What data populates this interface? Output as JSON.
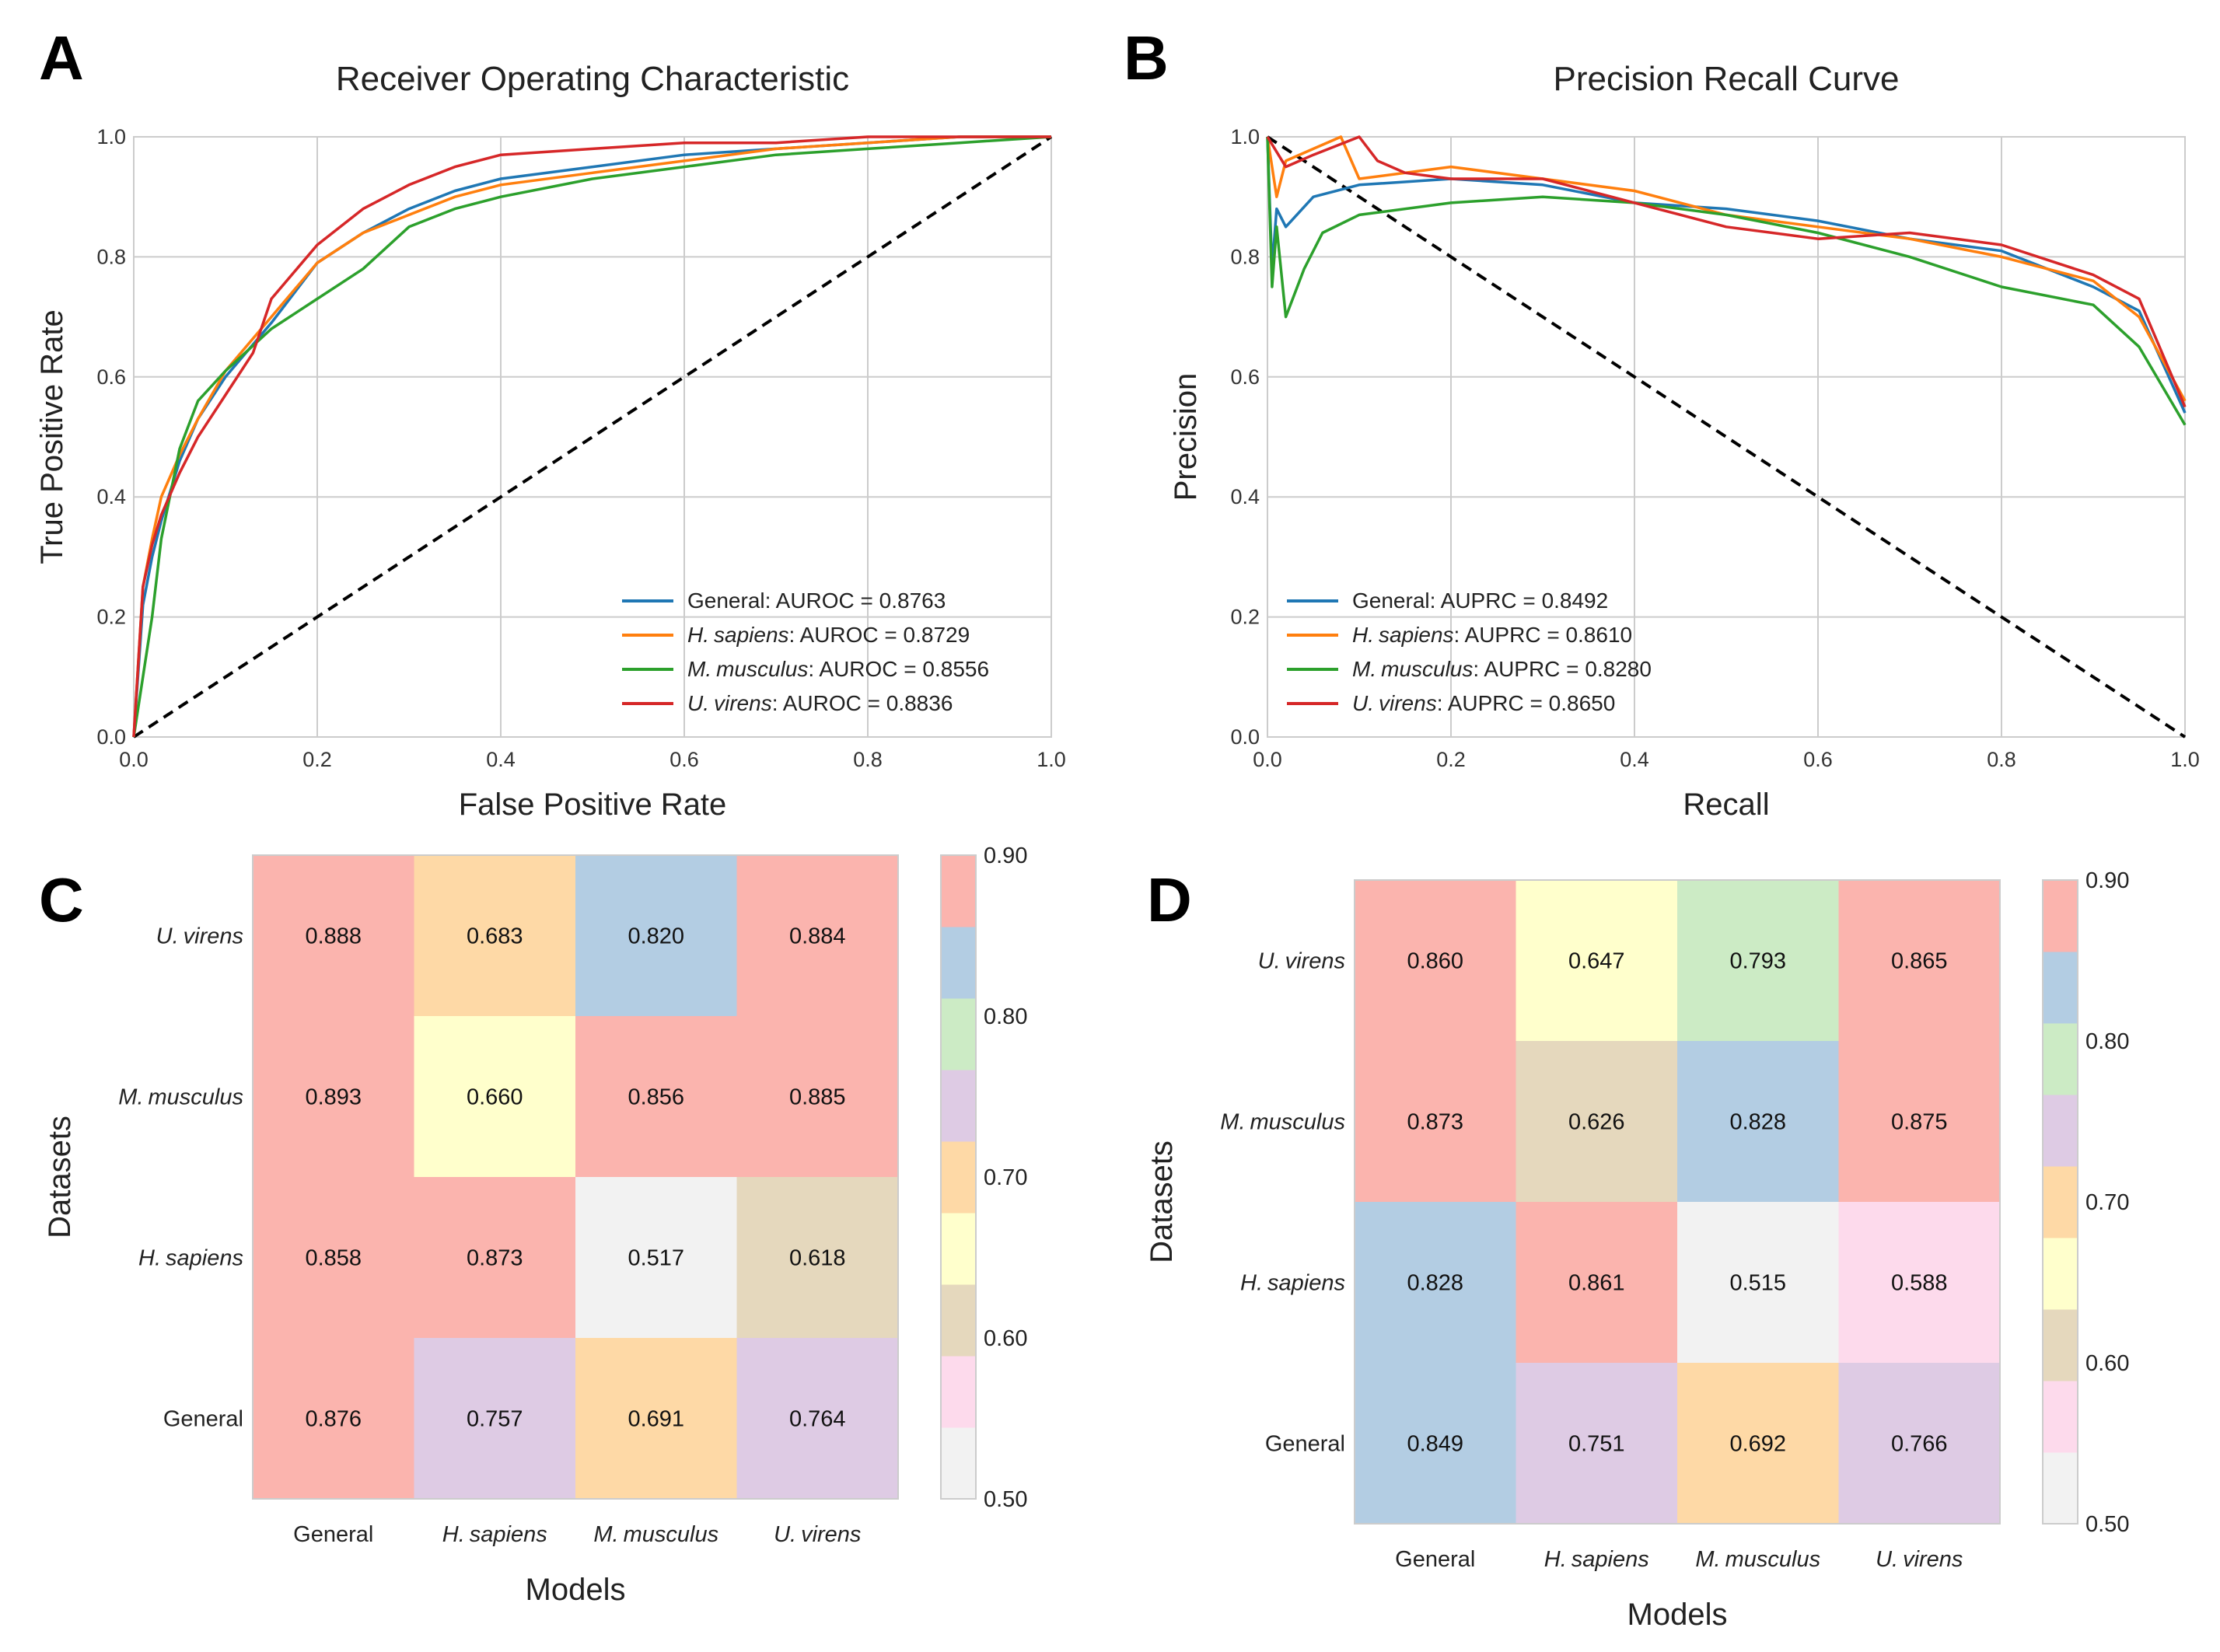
{
  "panels": {
    "a": "A",
    "b": "B",
    "c": "C",
    "d": "D"
  },
  "chart_data": [
    {
      "type": "line",
      "title": "Receiver Operating Characteristic",
      "xlabel": "False Positive Rate",
      "ylabel": "True Positive Rate",
      "xlim": [
        0,
        1
      ],
      "ylim": [
        0,
        1
      ],
      "ticks": [
        "0.0",
        "0.2",
        "0.4",
        "0.6",
        "0.8",
        "1.0"
      ],
      "grid": true,
      "legend_position": "lower-right",
      "diagonal": "dashed chance line from (0,0) to (1,1)",
      "series": [
        {
          "name": "General",
          "name_italic": false,
          "metric": ": AUROC = 0.8763",
          "color": "#1f77b4",
          "x": [
            0,
            0.01,
            0.02,
            0.03,
            0.05,
            0.07,
            0.1,
            0.15,
            0.2,
            0.25,
            0.3,
            0.35,
            0.4,
            0.5,
            0.6,
            0.7,
            0.8,
            0.9,
            1.0
          ],
          "y": [
            0,
            0.22,
            0.3,
            0.36,
            0.46,
            0.53,
            0.6,
            0.69,
            0.79,
            0.84,
            0.88,
            0.91,
            0.93,
            0.95,
            0.97,
            0.98,
            0.99,
            1.0,
            1.0
          ]
        },
        {
          "name": "H. sapiens",
          "name_italic": true,
          "metric": ": AUROC = 0.8729",
          "color": "#ff7f0e",
          "x": [
            0,
            0.01,
            0.02,
            0.03,
            0.05,
            0.07,
            0.1,
            0.15,
            0.2,
            0.25,
            0.3,
            0.35,
            0.4,
            0.5,
            0.6,
            0.7,
            0.8,
            0.9,
            1.0
          ],
          "y": [
            0,
            0.25,
            0.33,
            0.4,
            0.47,
            0.53,
            0.61,
            0.7,
            0.79,
            0.84,
            0.87,
            0.9,
            0.92,
            0.94,
            0.96,
            0.98,
            0.99,
            1.0,
            1.0
          ]
        },
        {
          "name": "M. musculus",
          "name_italic": true,
          "metric": ": AUROC = 0.8556",
          "color": "#2ca02c",
          "x": [
            0,
            0.01,
            0.02,
            0.03,
            0.05,
            0.07,
            0.1,
            0.15,
            0.2,
            0.25,
            0.3,
            0.35,
            0.4,
            0.5,
            0.6,
            0.7,
            0.8,
            0.9,
            1.0
          ],
          "y": [
            0,
            0.1,
            0.2,
            0.33,
            0.48,
            0.56,
            0.61,
            0.68,
            0.73,
            0.78,
            0.85,
            0.88,
            0.9,
            0.93,
            0.95,
            0.97,
            0.98,
            0.99,
            1.0
          ]
        },
        {
          "name": "U. virens",
          "name_italic": true,
          "metric": ": AUROC = 0.8836",
          "color": "#d62728",
          "x": [
            0,
            0.01,
            0.02,
            0.03,
            0.05,
            0.07,
            0.1,
            0.13,
            0.15,
            0.2,
            0.25,
            0.3,
            0.35,
            0.4,
            0.5,
            0.6,
            0.7,
            0.8,
            0.9,
            1.0
          ],
          "y": [
            0,
            0.25,
            0.32,
            0.37,
            0.44,
            0.5,
            0.57,
            0.64,
            0.73,
            0.82,
            0.88,
            0.92,
            0.95,
            0.97,
            0.98,
            0.99,
            0.99,
            1.0,
            1.0,
            1.0
          ]
        }
      ]
    },
    {
      "type": "line",
      "title": "Precision Recall Curve",
      "xlabel": "Recall",
      "ylabel": "Precision",
      "xlim": [
        0,
        1
      ],
      "ylim": [
        0,
        1
      ],
      "ticks": [
        "0.0",
        "0.2",
        "0.4",
        "0.6",
        "0.8",
        "1.0"
      ],
      "grid": true,
      "legend_position": "lower-left",
      "diagonal": "dashed line from (0,1) to (1,0)",
      "series": [
        {
          "name": "General",
          "name_italic": false,
          "metric": ": AUPRC = 0.8492",
          "color": "#1f77b4",
          "x": [
            0,
            0.005,
            0.01,
            0.02,
            0.05,
            0.1,
            0.2,
            0.3,
            0.4,
            0.5,
            0.6,
            0.7,
            0.8,
            0.9,
            0.95,
            1.0
          ],
          "y": [
            1.0,
            0.78,
            0.88,
            0.85,
            0.9,
            0.92,
            0.93,
            0.92,
            0.89,
            0.88,
            0.86,
            0.83,
            0.81,
            0.75,
            0.71,
            0.54
          ]
        },
        {
          "name": "H. sapiens",
          "name_italic": true,
          "metric": ": AUPRC = 0.8610",
          "color": "#ff7f0e",
          "x": [
            0,
            0.01,
            0.02,
            0.05,
            0.08,
            0.1,
            0.2,
            0.3,
            0.4,
            0.5,
            0.6,
            0.7,
            0.8,
            0.9,
            0.95,
            1.0
          ],
          "y": [
            1.0,
            0.9,
            0.96,
            0.98,
            1.0,
            0.93,
            0.95,
            0.93,
            0.91,
            0.87,
            0.85,
            0.83,
            0.8,
            0.76,
            0.7,
            0.56
          ]
        },
        {
          "name": "M. musculus",
          "name_italic": true,
          "metric": ": AUPRC = 0.8280",
          "color": "#2ca02c",
          "x": [
            0,
            0.005,
            0.01,
            0.02,
            0.04,
            0.06,
            0.1,
            0.2,
            0.3,
            0.4,
            0.5,
            0.6,
            0.7,
            0.8,
            0.9,
            0.95,
            1.0
          ],
          "y": [
            1.0,
            0.75,
            0.85,
            0.7,
            0.78,
            0.84,
            0.87,
            0.89,
            0.9,
            0.89,
            0.87,
            0.84,
            0.8,
            0.75,
            0.72,
            0.65,
            0.52
          ]
        },
        {
          "name": "U. virens",
          "name_italic": true,
          "metric": ": AUPRC = 0.8650",
          "color": "#d62728",
          "x": [
            0,
            0.02,
            0.05,
            0.1,
            0.12,
            0.15,
            0.2,
            0.3,
            0.4,
            0.5,
            0.6,
            0.7,
            0.8,
            0.9,
            0.95,
            1.0
          ],
          "y": [
            1.0,
            0.95,
            0.97,
            1.0,
            0.96,
            0.94,
            0.93,
            0.93,
            0.89,
            0.85,
            0.83,
            0.84,
            0.82,
            0.77,
            0.73,
            0.55
          ]
        }
      ]
    },
    {
      "type": "heatmap",
      "xlabel": "Models",
      "ylabel": "Datasets",
      "columns": [
        "General",
        "H. sapiens",
        "M. musculus",
        "U. virens"
      ],
      "columns_italic": [
        false,
        true,
        true,
        true
      ],
      "rows": [
        "U. virens",
        "M. musculus",
        "H. sapiens",
        "General"
      ],
      "rows_italic": [
        true,
        true,
        true,
        false
      ],
      "values": [
        [
          0.888,
          0.683,
          0.82,
          0.884
        ],
        [
          0.893,
          0.66,
          0.856,
          0.885
        ],
        [
          0.858,
          0.873,
          0.517,
          0.618
        ],
        [
          0.876,
          0.757,
          0.691,
          0.764
        ]
      ],
      "value_labels": [
        [
          "0.888",
          "0.683",
          "0.820",
          "0.884"
        ],
        [
          "0.893",
          "0.660",
          "0.856",
          "0.885"
        ],
        [
          "0.858",
          "0.873",
          "0.517",
          "0.618"
        ],
        [
          "0.876",
          "0.757",
          "0.691",
          "0.764"
        ]
      ],
      "colorbar": {
        "min": 0.5,
        "max": 0.9,
        "ticks": [
          "0.50",
          "0.60",
          "0.70",
          "0.80",
          "0.90"
        ],
        "colors": [
          "#f2f2f2",
          "#fddaec",
          "#e5d8bd",
          "#ffffcc",
          "#fed9a6",
          "#decbe4",
          "#ccebc5",
          "#b3cde3",
          "#fbb4ae"
        ]
      }
    },
    {
      "type": "heatmap",
      "xlabel": "Models",
      "ylabel": "Datasets",
      "columns": [
        "General",
        "H. sapiens",
        "M. musculus",
        "U. virens"
      ],
      "columns_italic": [
        false,
        true,
        true,
        true
      ],
      "rows": [
        "U. virens",
        "M. musculus",
        "H. sapiens",
        "General"
      ],
      "rows_italic": [
        true,
        true,
        true,
        false
      ],
      "values": [
        [
          0.86,
          0.647,
          0.793,
          0.865
        ],
        [
          0.873,
          0.626,
          0.828,
          0.875
        ],
        [
          0.828,
          0.861,
          0.515,
          0.588
        ],
        [
          0.849,
          0.751,
          0.692,
          0.766
        ]
      ],
      "value_labels": [
        [
          "0.860",
          "0.647",
          "0.793",
          "0.865"
        ],
        [
          "0.873",
          "0.626",
          "0.828",
          "0.875"
        ],
        [
          "0.828",
          "0.861",
          "0.515",
          "0.588"
        ],
        [
          "0.849",
          "0.751",
          "0.692",
          "0.766"
        ]
      ],
      "colorbar": {
        "min": 0.5,
        "max": 0.9,
        "ticks": [
          "0.50",
          "0.60",
          "0.70",
          "0.80",
          "0.90"
        ],
        "colors": [
          "#f2f2f2",
          "#fddaec",
          "#e5d8bd",
          "#ffffcc",
          "#fed9a6",
          "#decbe4",
          "#ccebc5",
          "#b3cde3",
          "#fbb4ae"
        ]
      }
    }
  ]
}
